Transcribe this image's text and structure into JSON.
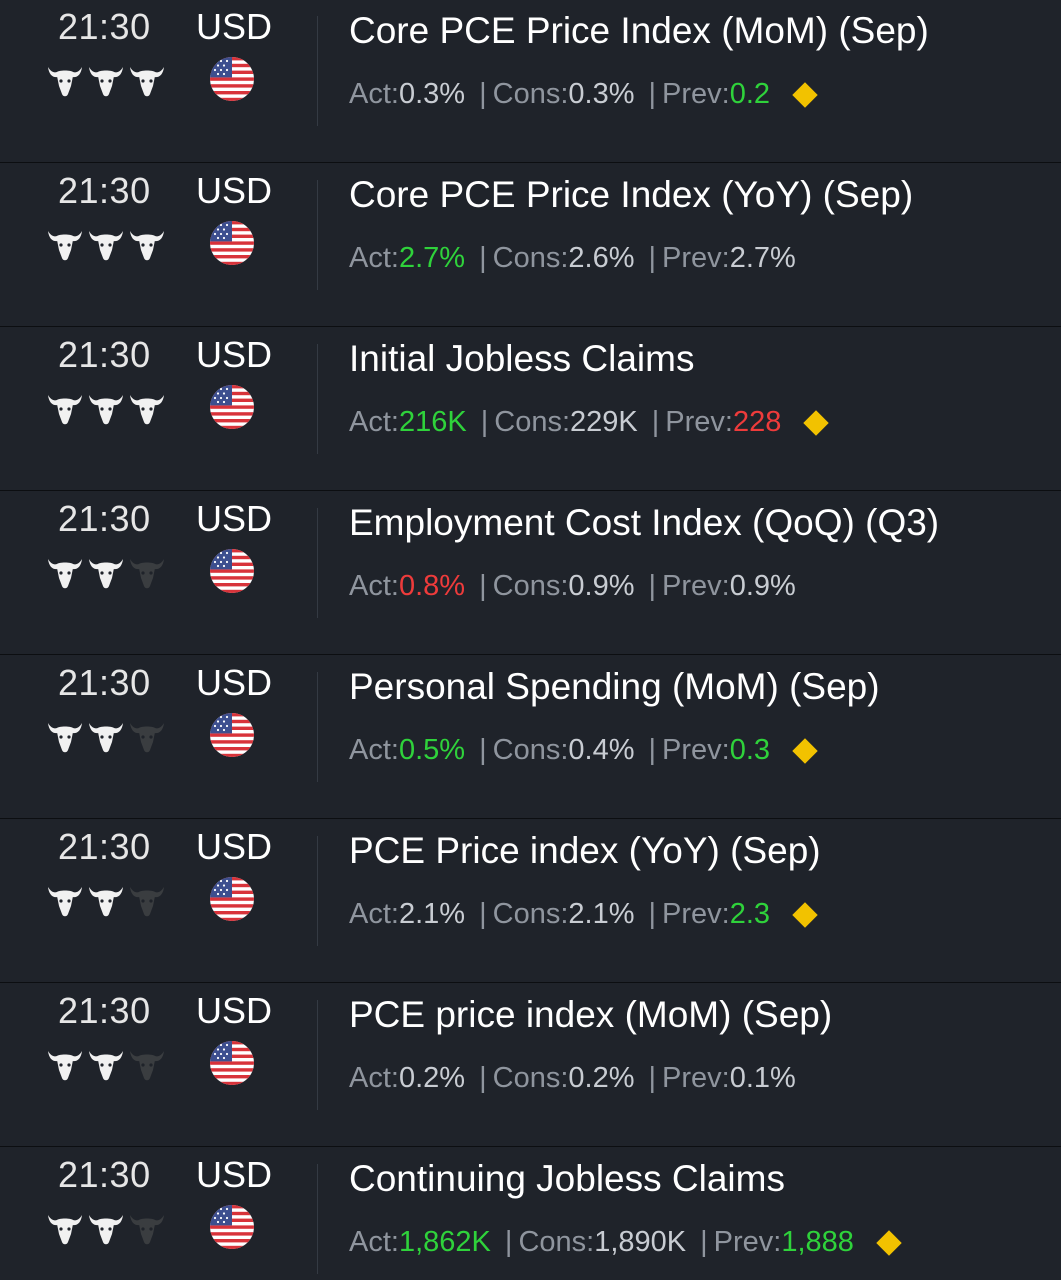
{
  "labels": {
    "act": "Act: ",
    "cons": "Cons: ",
    "prev": "Prev: ",
    "sep": "|"
  },
  "colors": {
    "positive": "#2fd23b",
    "negative": "#ee3b3b",
    "neutral": "#c8ccd2",
    "bull_on": "#f1f1f1",
    "bull_off": "#3a3d40",
    "diamond": "#f2c200"
  },
  "events": [
    {
      "time": "21:30",
      "currency": "USD",
      "flag_icon": "us-flag-icon",
      "importance": 3,
      "title": "Core PCE Price Index (MoM) (Sep)",
      "actual": "0.3%",
      "actual_color": "neutral",
      "consensus": "0.3%",
      "previous": "0.2",
      "previous_color": "positive",
      "revised": true
    },
    {
      "time": "21:30",
      "currency": "USD",
      "flag_icon": "us-flag-icon",
      "importance": 3,
      "title": "Core PCE Price Index (YoY) (Sep)",
      "actual": "2.7%",
      "actual_color": "positive",
      "consensus": "2.6%",
      "previous": "2.7%",
      "previous_color": "neutral",
      "revised": false
    },
    {
      "time": "21:30",
      "currency": "USD",
      "flag_icon": "us-flag-icon",
      "importance": 3,
      "title": "Initial Jobless Claims",
      "actual": "216K",
      "actual_color": "positive",
      "consensus": "229K",
      "previous": "228",
      "previous_color": "negative",
      "revised": true
    },
    {
      "time": "21:30",
      "currency": "USD",
      "flag_icon": "us-flag-icon",
      "importance": 2,
      "title": "Employment Cost Index (QoQ) (Q3)",
      "actual": "0.8%",
      "actual_color": "negative",
      "consensus": "0.9%",
      "previous": "0.9%",
      "previous_color": "neutral",
      "revised": false
    },
    {
      "time": "21:30",
      "currency": "USD",
      "flag_icon": "us-flag-icon",
      "importance": 2,
      "title": "Personal Spending (MoM) (Sep)",
      "actual": "0.5%",
      "actual_color": "positive",
      "consensus": "0.4%",
      "previous": "0.3",
      "previous_color": "positive",
      "revised": true
    },
    {
      "time": "21:30",
      "currency": "USD",
      "flag_icon": "us-flag-icon",
      "importance": 2,
      "title": "PCE Price index (YoY) (Sep)",
      "actual": "2.1%",
      "actual_color": "neutral",
      "consensus": "2.1%",
      "previous": "2.3",
      "previous_color": "positive",
      "revised": true
    },
    {
      "time": "21:30",
      "currency": "USD",
      "flag_icon": "us-flag-icon",
      "importance": 2,
      "title": "PCE price index (MoM) (Sep)",
      "actual": "0.2%",
      "actual_color": "neutral",
      "consensus": "0.2%",
      "previous": "0.1%",
      "previous_color": "neutral",
      "revised": false
    },
    {
      "time": "21:30",
      "currency": "USD",
      "flag_icon": "us-flag-icon",
      "importance": 2,
      "title": "Continuing Jobless Claims",
      "actual": "1,862K",
      "actual_color": "positive",
      "consensus": "1,890K",
      "previous": "1,888",
      "previous_color": "positive",
      "revised": true
    }
  ]
}
